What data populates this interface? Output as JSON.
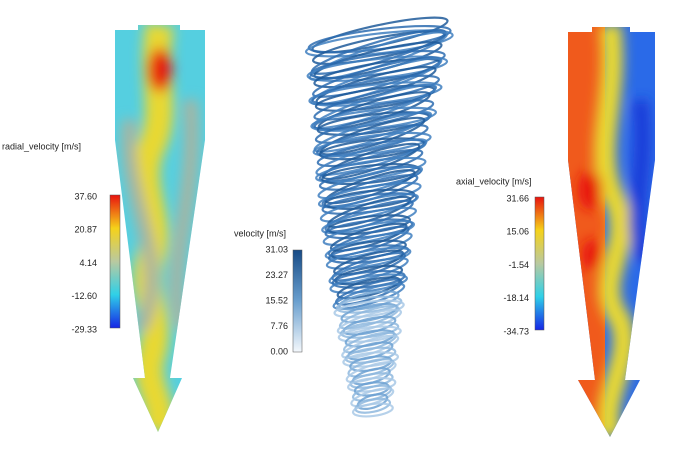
{
  "panels": [
    {
      "colorbar": {
        "title": "radial_velocity [m/s]",
        "ticks": [
          "37.60",
          "20.87",
          "4.14",
          "-12.60",
          "-29.33"
        ]
      }
    },
    {
      "colorbar": {
        "title": "velocity [m/s]",
        "ticks": [
          "31.03",
          "23.27",
          "15.52",
          "7.76",
          "0.00"
        ]
      }
    },
    {
      "colorbar": {
        "title": "axial_velocity [m/s]",
        "ticks": [
          "31.66",
          "15.06",
          "-1.54",
          "-18.14",
          "-34.73"
        ]
      }
    }
  ]
}
